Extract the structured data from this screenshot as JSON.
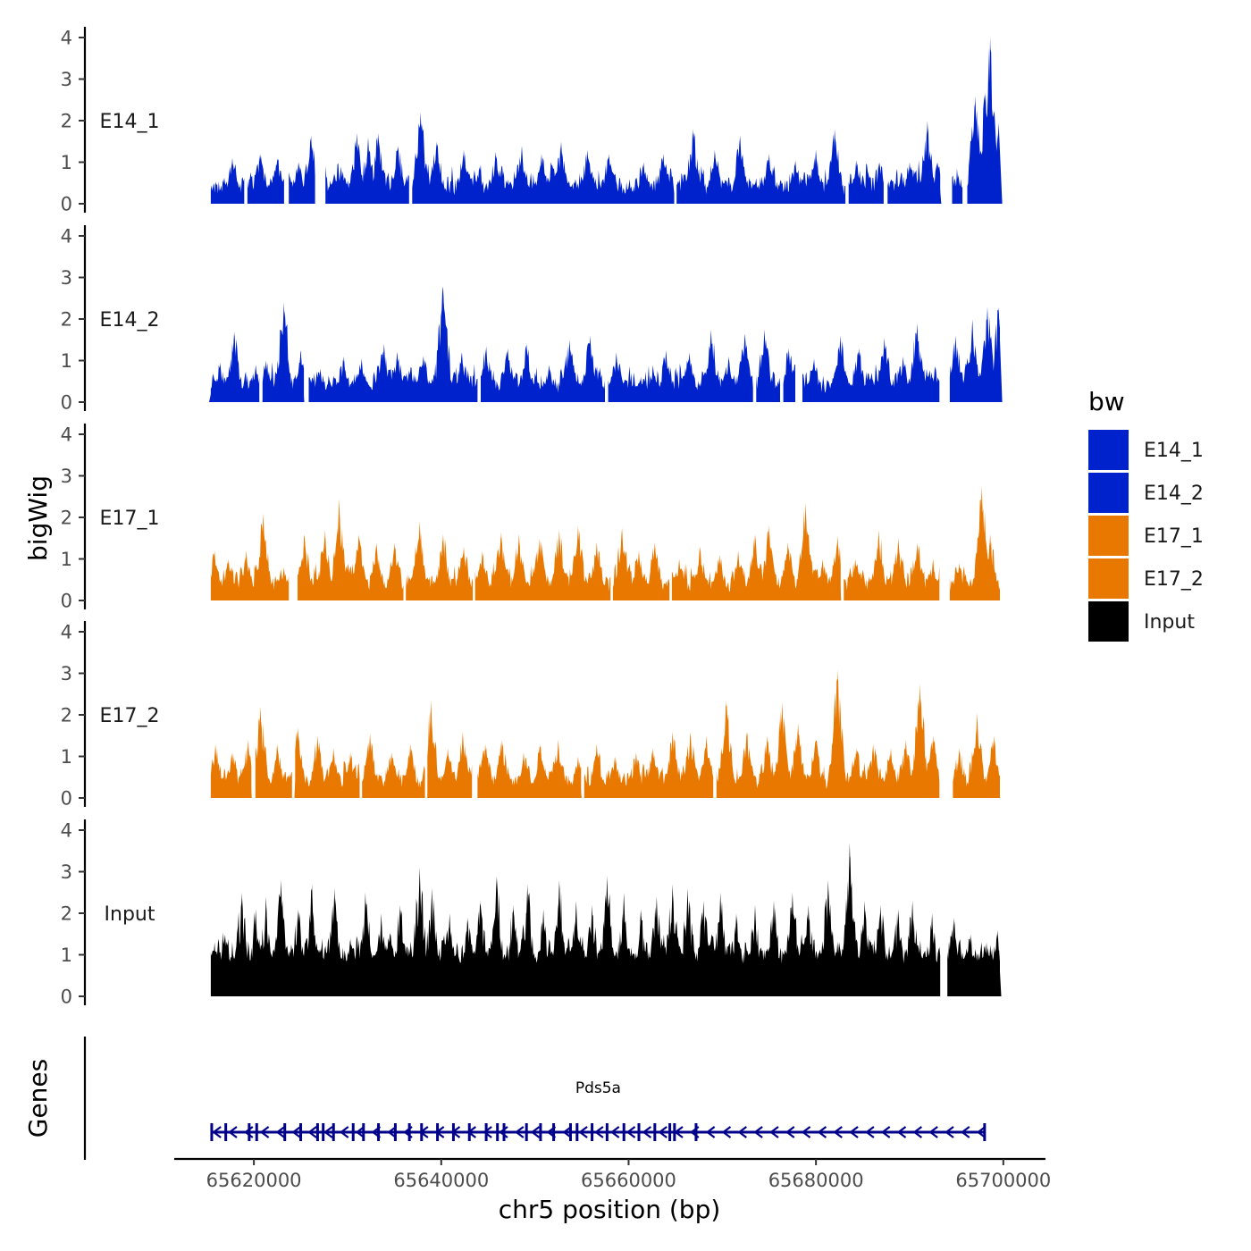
{
  "chart_data": {
    "type": "area",
    "title": "",
    "ylabel": "bigWig",
    "xlabel": "chr5 position (bp)",
    "ylim": [
      0,
      4
    ],
    "yticks": [
      0,
      1,
      2,
      3,
      4
    ],
    "xlim": [
      65611500,
      65704500
    ],
    "xticks": [
      65620000,
      65640000,
      65660000,
      65680000,
      65700000
    ],
    "xtick_labels": [
      "65620000",
      "65640000",
      "65660000",
      "65680000",
      "65700000"
    ],
    "region": [
      65615400,
      65699700
    ],
    "legend": {
      "title": "bw",
      "position": "right",
      "entries": [
        {
          "label": "E14_1",
          "color": "#0022CC"
        },
        {
          "label": "E14_2",
          "color": "#0022CC"
        },
        {
          "label": "E17_1",
          "color": "#E87800"
        },
        {
          "label": "E17_2",
          "color": "#E87800"
        },
        {
          "label": "Input",
          "color": "#000000"
        }
      ]
    },
    "series": [
      {
        "name": "E14_1",
        "color": "#0022CC",
        "gaps": [
          [
            65619000,
            65619300
          ],
          [
            65623300,
            65623700
          ],
          [
            65626600,
            65627600
          ],
          [
            65636600,
            65636900
          ],
          [
            65664900,
            65665100
          ],
          [
            65683200,
            65683400
          ],
          [
            65687300,
            65687600
          ],
          [
            65693300,
            65694500
          ],
          [
            65695700,
            65696100
          ]
        ],
        "peaks": [
          [
            65617700,
            1.1
          ],
          [
            65620700,
            1.2
          ],
          [
            65622500,
            1.1
          ],
          [
            65624800,
            1.0
          ],
          [
            65626100,
            1.65
          ],
          [
            65629300,
            0.9
          ],
          [
            65631000,
            1.7
          ],
          [
            65632200,
            1.6
          ],
          [
            65633300,
            1.7
          ],
          [
            65635400,
            1.4
          ],
          [
            65637800,
            2.2
          ],
          [
            65639500,
            1.5
          ],
          [
            65642400,
            1.3
          ],
          [
            65645800,
            1.25
          ],
          [
            65648600,
            1.4
          ],
          [
            65650700,
            1.2
          ],
          [
            65652800,
            1.5
          ],
          [
            65655600,
            1.3
          ],
          [
            65657900,
            1.2
          ],
          [
            65661600,
            1.0
          ],
          [
            65663700,
            1.2
          ],
          [
            65666900,
            1.8
          ],
          [
            65669200,
            1.3
          ],
          [
            65671900,
            1.65
          ],
          [
            65675000,
            1.2
          ],
          [
            65677800,
            1.05
          ],
          [
            65680000,
            1.3
          ],
          [
            65682000,
            1.8
          ],
          [
            65684300,
            1.05
          ],
          [
            65686800,
            1.0
          ],
          [
            65690000,
            1.0
          ],
          [
            65691900,
            2.0
          ],
          [
            65693000,
            1.0
          ],
          [
            65695200,
            0.7
          ],
          [
            65697000,
            2.6
          ],
          [
            65698100,
            2.7
          ],
          [
            65698600,
            4.0
          ],
          [
            65699500,
            1.95
          ]
        ]
      },
      {
        "name": "E14_2",
        "color": "#0022CC",
        "gaps": [
          [
            65620600,
            65620900
          ],
          [
            65625400,
            65625800
          ],
          [
            65643900,
            65644200
          ],
          [
            65657500,
            65657800
          ],
          [
            65673300,
            65673600
          ],
          [
            65676200,
            65676500
          ],
          [
            65677800,
            65678500
          ],
          [
            65693200,
            65694200
          ]
        ],
        "peaks": [
          [
            65615600,
            0.4
          ],
          [
            65616400,
            0.95
          ],
          [
            65617900,
            1.7
          ],
          [
            65620200,
            0.9
          ],
          [
            65621300,
            1.0
          ],
          [
            65623200,
            2.4
          ],
          [
            65625000,
            1.25
          ],
          [
            65627100,
            0.8
          ],
          [
            65629600,
            1.1
          ],
          [
            65631500,
            1.05
          ],
          [
            65633900,
            1.4
          ],
          [
            65635300,
            1.2
          ],
          [
            65638100,
            1.1
          ],
          [
            65640200,
            2.8
          ],
          [
            65642200,
            1.2
          ],
          [
            65644800,
            1.35
          ],
          [
            65647100,
            1.3
          ],
          [
            65649100,
            1.4
          ],
          [
            65651500,
            0.9
          ],
          [
            65653700,
            1.5
          ],
          [
            65655900,
            1.6
          ],
          [
            65658700,
            1.2
          ],
          [
            65661300,
            0.6
          ],
          [
            65664000,
            1.25
          ],
          [
            65666500,
            1.2
          ],
          [
            65668800,
            1.75
          ],
          [
            65670700,
            1.1
          ],
          [
            65672400,
            1.65
          ],
          [
            65674500,
            1.75
          ],
          [
            65677100,
            1.3
          ],
          [
            65679800,
            1.05
          ],
          [
            65682600,
            1.6
          ],
          [
            65684600,
            1.3
          ],
          [
            65687300,
            1.55
          ],
          [
            65689300,
            1.1
          ],
          [
            65690800,
            1.9
          ],
          [
            65692700,
            0.8
          ],
          [
            65694900,
            1.6
          ],
          [
            65696700,
            2.0
          ],
          [
            65698300,
            2.3
          ],
          [
            65699500,
            2.3
          ]
        ]
      },
      {
        "name": "E17_1",
        "color": "#E87800",
        "gaps": [
          [
            65623800,
            65624600
          ],
          [
            65636000,
            65636200
          ],
          [
            65643400,
            65643600
          ],
          [
            65658100,
            65658300
          ],
          [
            65664400,
            65664600
          ],
          [
            65682700,
            65682900
          ],
          [
            65693200,
            65694200
          ]
        ],
        "peaks": [
          [
            65615800,
            1.2
          ],
          [
            65617300,
            1.0
          ],
          [
            65619200,
            1.2
          ],
          [
            65621000,
            2.1
          ],
          [
            65623200,
            0.8
          ],
          [
            65625400,
            1.6
          ],
          [
            65627600,
            1.7
          ],
          [
            65629100,
            2.45
          ],
          [
            65631200,
            1.6
          ],
          [
            65633100,
            1.4
          ],
          [
            65635000,
            1.4
          ],
          [
            65637700,
            1.9
          ],
          [
            65640200,
            1.6
          ],
          [
            65642400,
            1.3
          ],
          [
            65644400,
            1.2
          ],
          [
            65646400,
            1.65
          ],
          [
            65648300,
            1.6
          ],
          [
            65650500,
            1.5
          ],
          [
            65652600,
            1.7
          ],
          [
            65654600,
            1.8
          ],
          [
            65656600,
            1.4
          ],
          [
            65659300,
            1.75
          ],
          [
            65661100,
            1.2
          ],
          [
            65662800,
            1.4
          ],
          [
            65665400,
            1.0
          ],
          [
            65667600,
            1.3
          ],
          [
            65669700,
            1.1
          ],
          [
            65671700,
            1.2
          ],
          [
            65673500,
            1.6
          ],
          [
            65675000,
            1.8
          ],
          [
            65677000,
            1.4
          ],
          [
            65678900,
            2.35
          ],
          [
            65680700,
            1.0
          ],
          [
            65682300,
            1.55
          ],
          [
            65684200,
            1.0
          ],
          [
            65686700,
            1.7
          ],
          [
            65688800,
            1.5
          ],
          [
            65690800,
            1.4
          ],
          [
            65692500,
            1.0
          ],
          [
            65695300,
            0.9
          ],
          [
            65697700,
            2.75
          ],
          [
            65698600,
            1.6
          ]
        ]
      },
      {
        "name": "E17_2",
        "color": "#E87800",
        "gaps": [
          [
            65619800,
            65620100
          ],
          [
            65624100,
            65624400
          ],
          [
            65631300,
            65631500
          ],
          [
            65638300,
            65638500
          ],
          [
            65643300,
            65643800
          ],
          [
            65655000,
            65655200
          ],
          [
            65669100,
            65669300
          ],
          [
            65693200,
            65694600
          ]
        ],
        "peaks": [
          [
            65615900,
            1.3
          ],
          [
            65617700,
            1.1
          ],
          [
            65619400,
            1.4
          ],
          [
            65620700,
            2.2
          ],
          [
            65622500,
            1.3
          ],
          [
            65624700,
            1.7
          ],
          [
            65626800,
            1.5
          ],
          [
            65628500,
            1.2
          ],
          [
            65630300,
            1.1
          ],
          [
            65632400,
            1.55
          ],
          [
            65634700,
            1.1
          ],
          [
            65636700,
            1.3
          ],
          [
            65638900,
            2.35
          ],
          [
            65640700,
            1.2
          ],
          [
            65642300,
            1.6
          ],
          [
            65644700,
            1.3
          ],
          [
            65646500,
            1.4
          ],
          [
            65648800,
            1.1
          ],
          [
            65650600,
            1.3
          ],
          [
            65652500,
            1.4
          ],
          [
            65654600,
            1.0
          ],
          [
            65656600,
            1.3
          ],
          [
            65658600,
            1.0
          ],
          [
            65660800,
            1.1
          ],
          [
            65662600,
            1.2
          ],
          [
            65664700,
            1.6
          ],
          [
            65666600,
            1.6
          ],
          [
            65668300,
            1.5
          ],
          [
            65670400,
            2.35
          ],
          [
            65672600,
            1.6
          ],
          [
            65674800,
            1.5
          ],
          [
            65676400,
            2.3
          ],
          [
            65678100,
            1.8
          ],
          [
            65680000,
            1.4
          ],
          [
            65682300,
            3.1
          ],
          [
            65684300,
            1.2
          ],
          [
            65686100,
            1.3
          ],
          [
            65688000,
            1.2
          ],
          [
            65689600,
            1.4
          ],
          [
            65691100,
            2.75
          ],
          [
            65692500,
            1.5
          ],
          [
            65695300,
            1.2
          ],
          [
            65697200,
            2.05
          ],
          [
            65699000,
            1.5
          ]
        ]
      },
      {
        "name": "Input",
        "color": "#000000",
        "gaps": [
          [
            65693300,
            65694000
          ]
        ],
        "peaks": [
          [
            65615800,
            1.3
          ],
          [
            65617300,
            1.1
          ],
          [
            65618700,
            2.5
          ],
          [
            65620200,
            2.1
          ],
          [
            65621300,
            2.4
          ],
          [
            65622900,
            2.8
          ],
          [
            65624700,
            2.1
          ],
          [
            65626200,
            2.7
          ],
          [
            65628600,
            2.6
          ],
          [
            65630300,
            1.4
          ],
          [
            65631900,
            2.5
          ],
          [
            65633600,
            2.0
          ],
          [
            65635600,
            2.2
          ],
          [
            65637700,
            3.1
          ],
          [
            65639000,
            2.6
          ],
          [
            65640900,
            2.0
          ],
          [
            65642800,
            1.9
          ],
          [
            65644200,
            2.3
          ],
          [
            65645900,
            2.9
          ],
          [
            65647700,
            2.2
          ],
          [
            65649200,
            2.7
          ],
          [
            65650900,
            2.1
          ],
          [
            65652600,
            2.8
          ],
          [
            65654400,
            2.3
          ],
          [
            65656100,
            2.2
          ],
          [
            65657700,
            2.9
          ],
          [
            65659500,
            2.5
          ],
          [
            65661300,
            2.1
          ],
          [
            65663000,
            2.4
          ],
          [
            65664700,
            2.7
          ],
          [
            65666300,
            2.6
          ],
          [
            65668000,
            2.3
          ],
          [
            65669800,
            2.5
          ],
          [
            65671500,
            2.0
          ],
          [
            65673500,
            2.2
          ],
          [
            65675500,
            2.3
          ],
          [
            65677500,
            2.5
          ],
          [
            65679200,
            2.2
          ],
          [
            65681300,
            2.8
          ],
          [
            65683600,
            3.7
          ],
          [
            65685200,
            2.3
          ],
          [
            65686900,
            2.2
          ],
          [
            65688800,
            2.1
          ],
          [
            65690300,
            2.3
          ],
          [
            65692400,
            2.0
          ],
          [
            65694700,
            1.9
          ],
          [
            65696500,
            1.5
          ],
          [
            65698200,
            1.3
          ],
          [
            65699400,
            1.6
          ]
        ]
      }
    ],
    "genes": [
      {
        "name": "Pds5a",
        "start": 65615400,
        "end": 65698100,
        "strand": "-",
        "color": "#00008B",
        "exons": [
          65615500,
          65617000,
          65619500,
          65620300,
          65623300,
          65625000,
          65626800,
          65627400,
          65628500,
          65630600,
          65631700,
          65633300,
          65635100,
          65636600,
          65637900,
          65639600,
          65641300,
          65643000,
          65644800,
          65646000,
          65646700,
          65649100,
          65650600,
          65652000,
          65653800,
          65654500,
          65656100,
          65657700,
          65659500,
          65661100,
          65662800,
          65664400,
          65664900,
          65667200,
          65698000
        ]
      }
    ]
  }
}
